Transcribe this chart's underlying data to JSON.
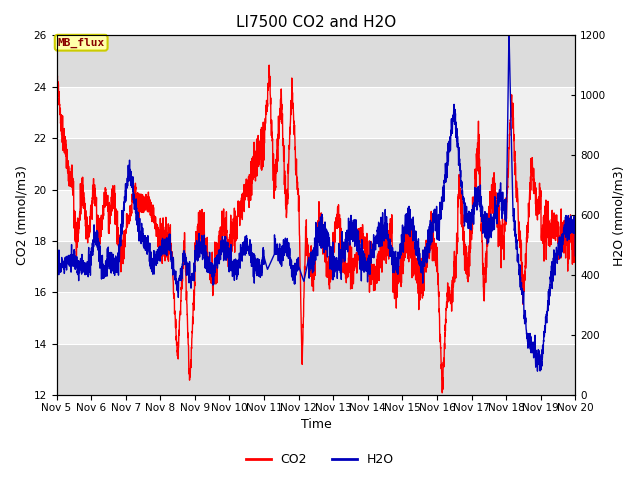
{
  "title": "LI7500 CO2 and H2O",
  "xlabel": "Time",
  "ylabel_left": "CO2 (mmol/m3)",
  "ylabel_right": "H2O (mmol/m3)",
  "xlim": [
    0,
    15
  ],
  "ylim_left": [
    12,
    26
  ],
  "ylim_right": [
    0,
    1200
  ],
  "yticks_left": [
    12,
    14,
    16,
    18,
    20,
    22,
    24,
    26
  ],
  "yticks_right": [
    0,
    200,
    400,
    600,
    800,
    1000,
    1200
  ],
  "xtick_labels": [
    "Nov 5",
    "Nov 6",
    "Nov 7",
    "Nov 8",
    "Nov 9",
    "Nov 10",
    "Nov 11",
    "Nov 12",
    "Nov 13",
    "Nov 14",
    "Nov 15",
    "Nov 16",
    "Nov 17",
    "Nov 18",
    "Nov 19",
    "Nov 20"
  ],
  "xtick_positions": [
    0,
    1,
    2,
    3,
    4,
    5,
    6,
    7,
    8,
    9,
    10,
    11,
    12,
    13,
    14,
    15
  ],
  "annotation_text": "MB_flux",
  "color_co2": "#FF0000",
  "color_h2o": "#0000BB",
  "legend_co2": "CO2",
  "legend_h2o": "H2O",
  "title_fontsize": 11,
  "axis_label_fontsize": 9,
  "tick_fontsize": 7.5,
  "legend_fontsize": 9,
  "band_colors": [
    "#DCDCDC",
    "#F0F0F0"
  ],
  "fig_facecolor": "#FFFFFF",
  "ax_facecolor": "#F0F0F0"
}
